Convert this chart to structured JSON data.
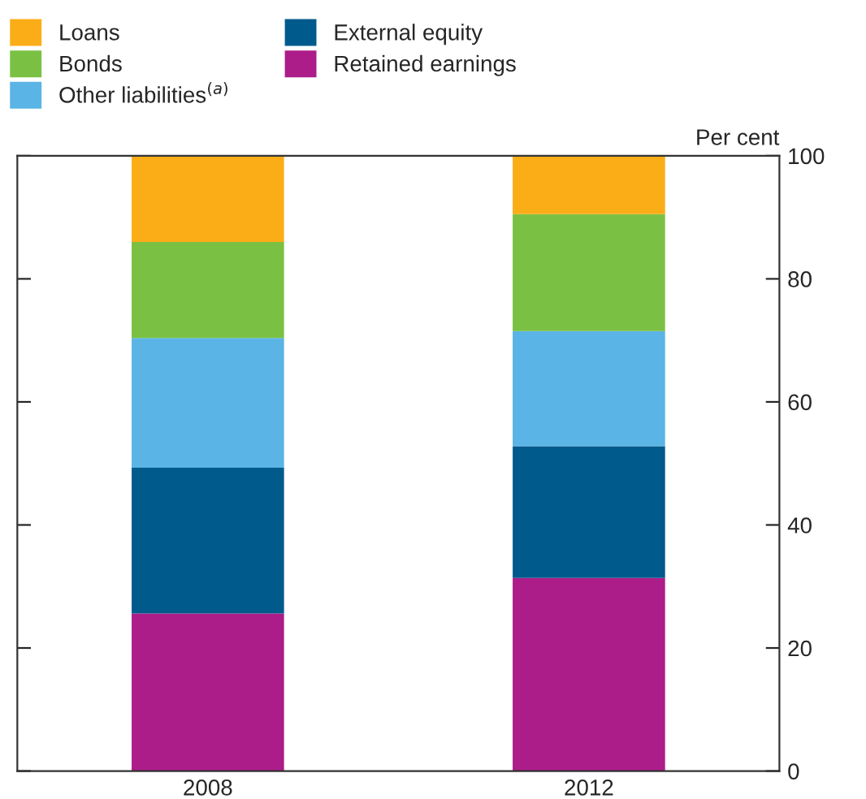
{
  "chart_data": {
    "type": "bar",
    "stacked": true,
    "categories": [
      "2008",
      "2012"
    ],
    "series": [
      {
        "name": "Retained earnings",
        "color": "#ac1d8a",
        "values": [
          25.6,
          31.4
        ]
      },
      {
        "name": "External equity",
        "color": "#005a8c",
        "values": [
          23.7,
          21.4
        ]
      },
      {
        "name": "Other liabilities$^{(a)}$",
        "color": "#5ab4e5",
        "values": [
          21.1,
          18.7
        ]
      },
      {
        "name": "Bonds",
        "color": "#7ac143",
        "values": [
          15.6,
          19.0
        ]
      },
      {
        "name": "Loans",
        "color": "#fbad18",
        "values": [
          14.0,
          9.5
        ]
      }
    ],
    "ylabel": "Per cent",
    "ylim": [
      0,
      100
    ],
    "yticks": [
      0,
      20,
      40,
      60,
      80,
      100
    ],
    "grid": false,
    "legend": "top left"
  }
}
